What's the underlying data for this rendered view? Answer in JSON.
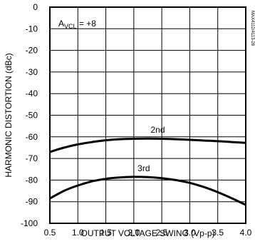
{
  "chart_data": {
    "type": "line",
    "title": "",
    "xlabel": "OUTPUT VOLTAGE SWING (Vp-p)",
    "ylabel": "HARMONIC DISTORTION (dBc)",
    "xlim": [
      0.5,
      4.0
    ],
    "ylim": [
      -100,
      0
    ],
    "x_ticks": [
      "0.5",
      "1.0",
      "1.5",
      "2.0",
      "2.5",
      "3.0",
      "3.5",
      "4.0"
    ],
    "y_ticks": [
      "0",
      "-10",
      "-20",
      "-30",
      "-40",
      "-50",
      "-60",
      "-70",
      "-80",
      "-90",
      "-100"
    ],
    "grid": true,
    "legend": "none",
    "annotations": {
      "condition_prefix": "A",
      "condition_subscript": "VCL",
      "condition_suffix": " = +8",
      "side_code": "MAX4112/4113-28"
    },
    "line_color": "#000000",
    "series": [
      {
        "name": "2nd",
        "x": [
          0.5,
          0.75,
          1.0,
          1.25,
          1.5,
          1.75,
          2.0,
          2.25,
          2.5,
          2.75,
          3.0,
          3.25,
          3.5,
          3.75,
          4.0
        ],
        "y": [
          -67.0,
          -65.0,
          -63.5,
          -62.4,
          -61.6,
          -61.1,
          -60.9,
          -60.8,
          -60.9,
          -61.1,
          -61.4,
          -61.7,
          -62.0,
          -62.4,
          -62.8
        ]
      },
      {
        "name": "3rd",
        "x": [
          0.5,
          0.75,
          1.0,
          1.25,
          1.5,
          1.75,
          2.0,
          2.25,
          2.5,
          2.75,
          3.0,
          3.25,
          3.5,
          3.75,
          4.0
        ],
        "y": [
          -88.5,
          -85.0,
          -82.5,
          -80.6,
          -79.4,
          -78.8,
          -78.5,
          -78.6,
          -79.1,
          -80.0,
          -81.3,
          -83.2,
          -85.6,
          -88.4,
          -91.5
        ]
      }
    ]
  }
}
